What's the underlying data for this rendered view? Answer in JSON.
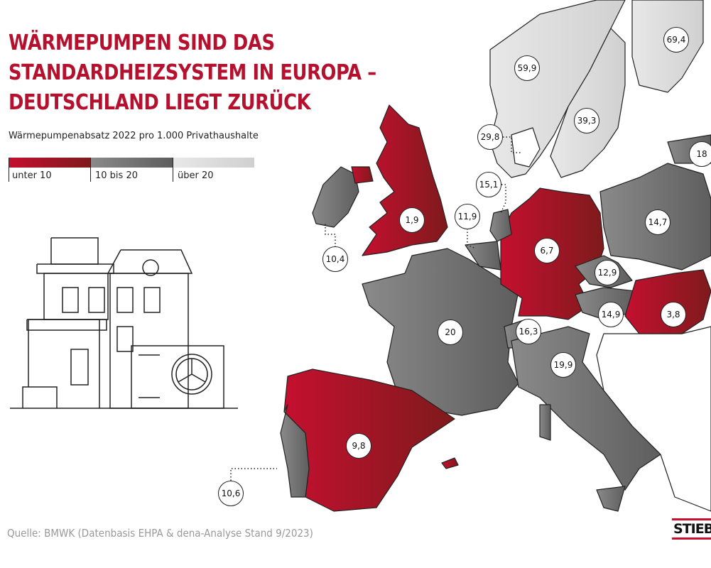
{
  "title_lines": [
    "WÄRMEPUMPEN SIND DAS",
    "STANDARDHEIZSYSTEM IN EUROPA –",
    "DEUTSCHLAND LIEGT ZURÜCK"
  ],
  "subtitle": "Wärmepumpenabsatz 2022 pro 1.000 Privathaushalte",
  "legend": [
    {
      "label": "unter 10",
      "color": "#a8122a"
    },
    {
      "label": "10 bis 20",
      "color": "#6e6e6e"
    },
    {
      "label": "über 20",
      "color": "#d9d9d9"
    }
  ],
  "countries": {
    "norway": "59,9",
    "sweden": "39,3",
    "finland": "69,4",
    "denmark": "29,8",
    "netherlands": "15,1",
    "belgium": "11,9",
    "ireland": "10,4",
    "uk": "1,9",
    "germany": "6,7",
    "poland": "14,7",
    "czechia": "12,9",
    "austria": "14,9",
    "hungary": "3,8",
    "switzerland": "16,3",
    "france": "20",
    "italy": "19,9",
    "spain": "9,8",
    "portugal": "10,6",
    "estonia": "18"
  },
  "source": "Quelle: BMWK (Datenbasis EHPA & dena-Analyse Stand 9/2023)",
  "logo_text": "STIEBEL"
}
